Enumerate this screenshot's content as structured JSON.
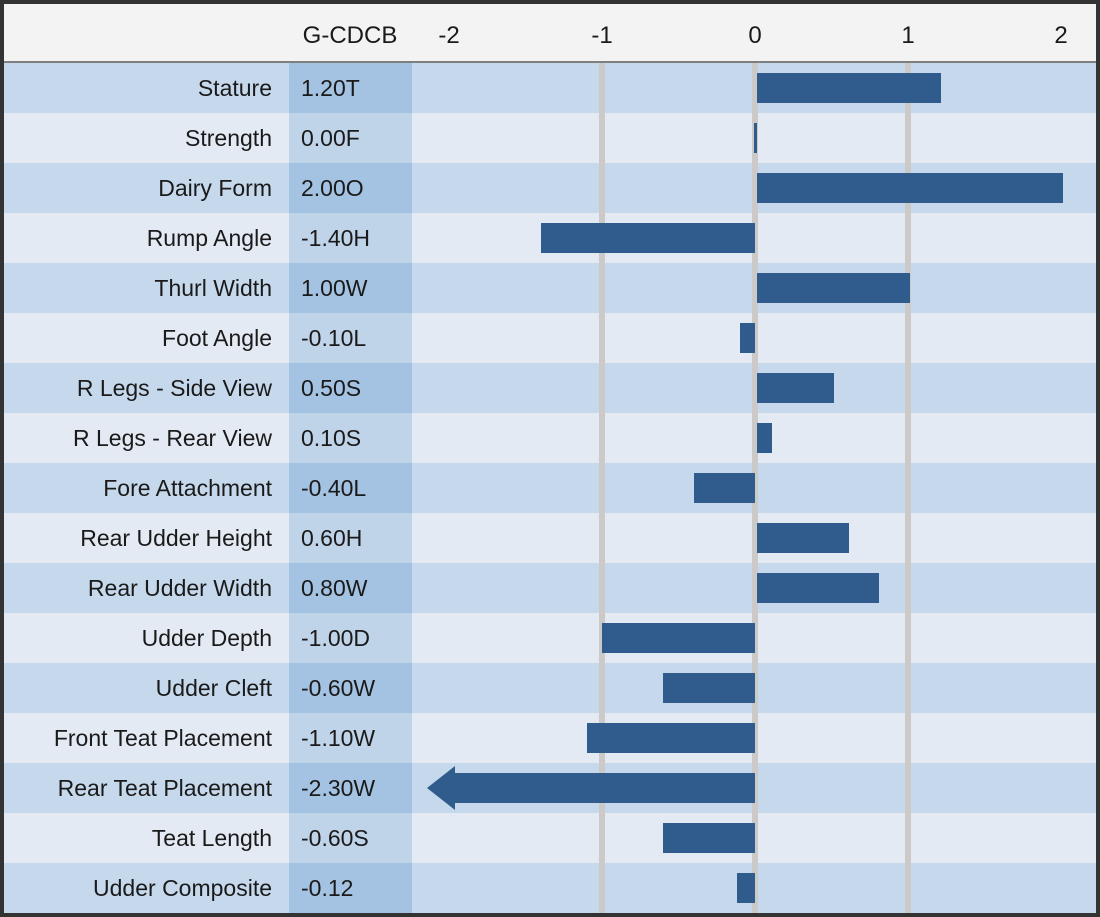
{
  "colors": {
    "bar": "#2f5c8c",
    "row_dark": "#c6d9ec",
    "row_light": "#e3eaf3",
    "value_cell_dark": "#a4c2e1",
    "value_cell_light": "#bfd3e9",
    "gridline": "#cbcac8",
    "header_bg": "#f3f3f3",
    "frame_border": "#333333",
    "text": "#1a1a1a"
  },
  "chart_data": {
    "type": "bar",
    "orientation": "horizontal",
    "value_column_header": "G-CDCB",
    "x_axis_tick_labels": [
      "-2",
      "-1",
      "0",
      "1",
      "2"
    ],
    "x_axis_tick_values": [
      -2,
      -1,
      0,
      1,
      2
    ],
    "xlim": [
      -2,
      2
    ],
    "gridlines_at": [
      -1,
      0,
      1
    ],
    "rows": [
      {
        "trait": "Stature",
        "value_label": "1.20T",
        "value": 1.2
      },
      {
        "trait": "Strength",
        "value_label": "0.00F",
        "value": 0.0
      },
      {
        "trait": "Dairy Form",
        "value_label": "2.00O",
        "value": 2.0
      },
      {
        "trait": "Rump Angle",
        "value_label": "-1.40H",
        "value": -1.4
      },
      {
        "trait": "Thurl Width",
        "value_label": "1.00W",
        "value": 1.0
      },
      {
        "trait": "Foot Angle",
        "value_label": "-0.10L",
        "value": -0.1
      },
      {
        "trait": "R Legs - Side View",
        "value_label": "0.50S",
        "value": 0.5
      },
      {
        "trait": "R Legs - Rear View",
        "value_label": "0.10S",
        "value": 0.1
      },
      {
        "trait": "Fore Attachment",
        "value_label": "-0.40L",
        "value": -0.4
      },
      {
        "trait": "Rear Udder Height",
        "value_label": "0.60H",
        "value": 0.6
      },
      {
        "trait": "Rear Udder Width",
        "value_label": "0.80W",
        "value": 0.8
      },
      {
        "trait": "Udder Depth",
        "value_label": "-1.00D",
        "value": -1.0
      },
      {
        "trait": "Udder Cleft",
        "value_label": "-0.60W",
        "value": -0.6
      },
      {
        "trait": "Front Teat Placement",
        "value_label": "-1.10W",
        "value": -1.1
      },
      {
        "trait": "Rear Teat Placement",
        "value_label": "-2.30W",
        "value": -2.3,
        "clipped_arrow": true
      },
      {
        "trait": "Teat Length",
        "value_label": "-0.60S",
        "value": -0.6
      },
      {
        "trait": "Udder Composite",
        "value_label": "-0.12",
        "value": -0.12
      }
    ]
  }
}
